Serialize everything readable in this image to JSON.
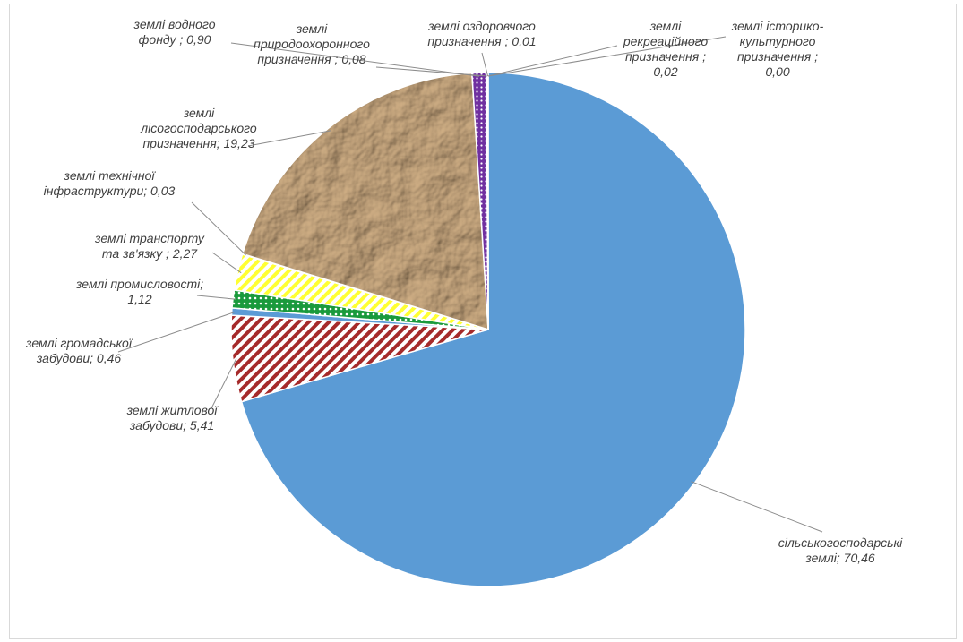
{
  "chart_data": {
    "type": "pie",
    "title": "",
    "slices": [
      {
        "key": "agri",
        "name": "сільськогосподарські землі",
        "value": 70.46,
        "label_lines": [
          "сільськогосподарські",
          "землі; 70,46"
        ],
        "color": "#5b9bd5",
        "fill": "solid"
      },
      {
        "key": "residential",
        "name": "землі житлової забудови",
        "value": 5.41,
        "label_lines": [
          "землі житлової",
          "забудови; 5,41"
        ],
        "color": "#a52a2a",
        "fill": "diagonal-stripes"
      },
      {
        "key": "public",
        "name": "землі громадської забудови",
        "value": 0.46,
        "label_lines": [
          "землі громадської",
          "забудови; 0,46"
        ],
        "color": "#5b9bd5",
        "fill": "solid"
      },
      {
        "key": "industry",
        "name": "землі промисловості",
        "value": 1.12,
        "label_lines": [
          "землі промисловості;",
          "1,12"
        ],
        "color": "#1a9a3c",
        "fill": "dots"
      },
      {
        "key": "transport",
        "name": "землі транспорту та зв'язку",
        "value": 2.27,
        "label_lines": [
          "землі транспорту",
          "та зв'язку ; 2,27"
        ],
        "color": "#ffff33",
        "fill": "diagonal-stripes"
      },
      {
        "key": "tech",
        "name": "землі технічної інфраструктури",
        "value": 0.03,
        "label_lines": [
          "землі технічної",
          "інфраструктури; 0,03"
        ],
        "color": "#5b9bd5",
        "fill": "solid"
      },
      {
        "key": "forest",
        "name": "землі лісогосподарського призначення",
        "value": 19.23,
        "label_lines": [
          "землі",
          "лісогосподарського",
          "призначення; 19,23"
        ],
        "color": "#a67c52",
        "fill": "crumpled-paper-texture"
      },
      {
        "key": "water",
        "name": "землі водного фонду",
        "value": 0.9,
        "label_lines": [
          "землі водного",
          "фонду ; 0,90"
        ],
        "color": "#7030a0",
        "fill": "dots"
      },
      {
        "key": "nature",
        "name": "землі природоохоронного призначення",
        "value": 0.08,
        "label_lines": [
          "землі",
          "природоохоронного",
          "призначення ; 0,08"
        ],
        "color": "#5b9bd5",
        "fill": "solid"
      },
      {
        "key": "health",
        "name": "землі оздоровчого призначення",
        "value": 0.01,
        "label_lines": [
          "землі оздоровчого",
          "призначення ; 0,01"
        ],
        "color": "#5b9bd5",
        "fill": "solid"
      },
      {
        "key": "recreation",
        "name": "землі рекреаційного призначення",
        "value": 0.02,
        "label_lines": [
          "землі",
          "рекреаційного",
          "призначення ;",
          "0,02"
        ],
        "color": "#5b9bd5",
        "fill": "solid"
      },
      {
        "key": "historic",
        "name": "землі історико-культурного призначення",
        "value": 0.0,
        "label_lines": [
          "землі історико-",
          "культурного",
          "призначення ;",
          "0,00"
        ],
        "color": "#5b9bd5",
        "fill": "solid"
      }
    ],
    "start_angle_deg": 0,
    "direction": "clockwise",
    "data_labels": "outside with leader lines"
  }
}
